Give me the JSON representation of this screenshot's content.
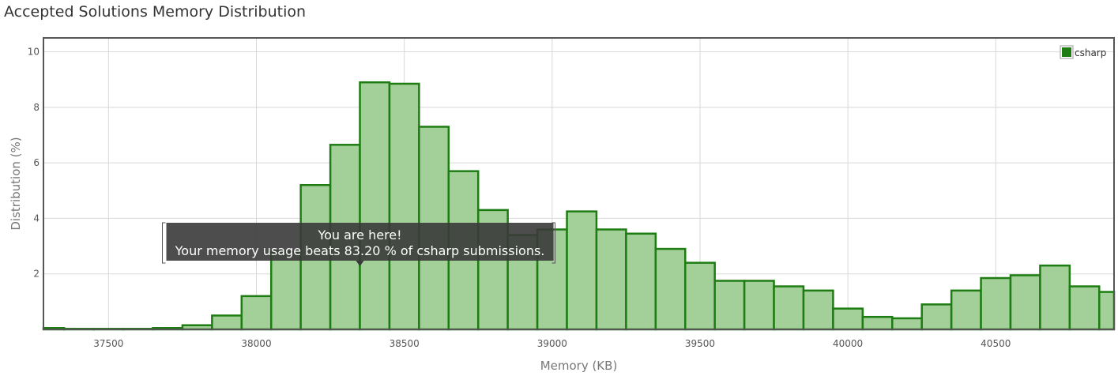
{
  "title": "Accepted Solutions Memory Distribution",
  "colors": {
    "bar_fill": "#a3cf98",
    "bar_stroke": "#1d7d12",
    "grid": "#d8d8d8",
    "frame": "#555555",
    "tooltip_bg": "#3a3a3a"
  },
  "chart_data": {
    "type": "bar",
    "title": "Accepted Solutions Memory Distribution",
    "xlabel": "Memory (KB)",
    "ylabel": "Distribution (%)",
    "xlim": [
      37280,
      40900
    ],
    "ylim": [
      0,
      10.5
    ],
    "bin_width": 100,
    "grid": true,
    "legend_position": "top-right",
    "x_ticks": [
      37500,
      38000,
      38500,
      39000,
      39500,
      40000,
      40500
    ],
    "y_ticks": [
      2,
      4,
      6,
      8,
      10
    ],
    "series": [
      {
        "name": "csharp",
        "x": [
          37280,
          37350,
          37450,
          37550,
          37650,
          37750,
          37850,
          37950,
          38050,
          38150,
          38250,
          38350,
          38450,
          38550,
          38650,
          38750,
          38850,
          38950,
          39050,
          39150,
          39250,
          39350,
          39450,
          39550,
          39650,
          39750,
          39850,
          39950,
          40050,
          40150,
          40250,
          40350,
          40450,
          40550,
          40650,
          40750,
          40850
        ],
        "values": [
          0.05,
          0.02,
          0.02,
          0.02,
          0.05,
          0.15,
          0.5,
          1.2,
          2.8,
          5.2,
          6.65,
          8.9,
          8.85,
          7.3,
          5.7,
          4.3,
          3.4,
          3.6,
          4.25,
          3.6,
          3.45,
          2.9,
          2.4,
          1.75,
          1.75,
          1.55,
          1.4,
          0.75,
          0.45,
          0.4,
          0.9,
          1.4,
          1.85,
          1.95,
          2.3,
          1.55,
          1.35
        ]
      }
    ],
    "annotation": {
      "x": 38350,
      "y": 2.2,
      "line1": "You are here!",
      "line2": "Your memory usage beats 83.20 % of csharp submissions."
    }
  }
}
